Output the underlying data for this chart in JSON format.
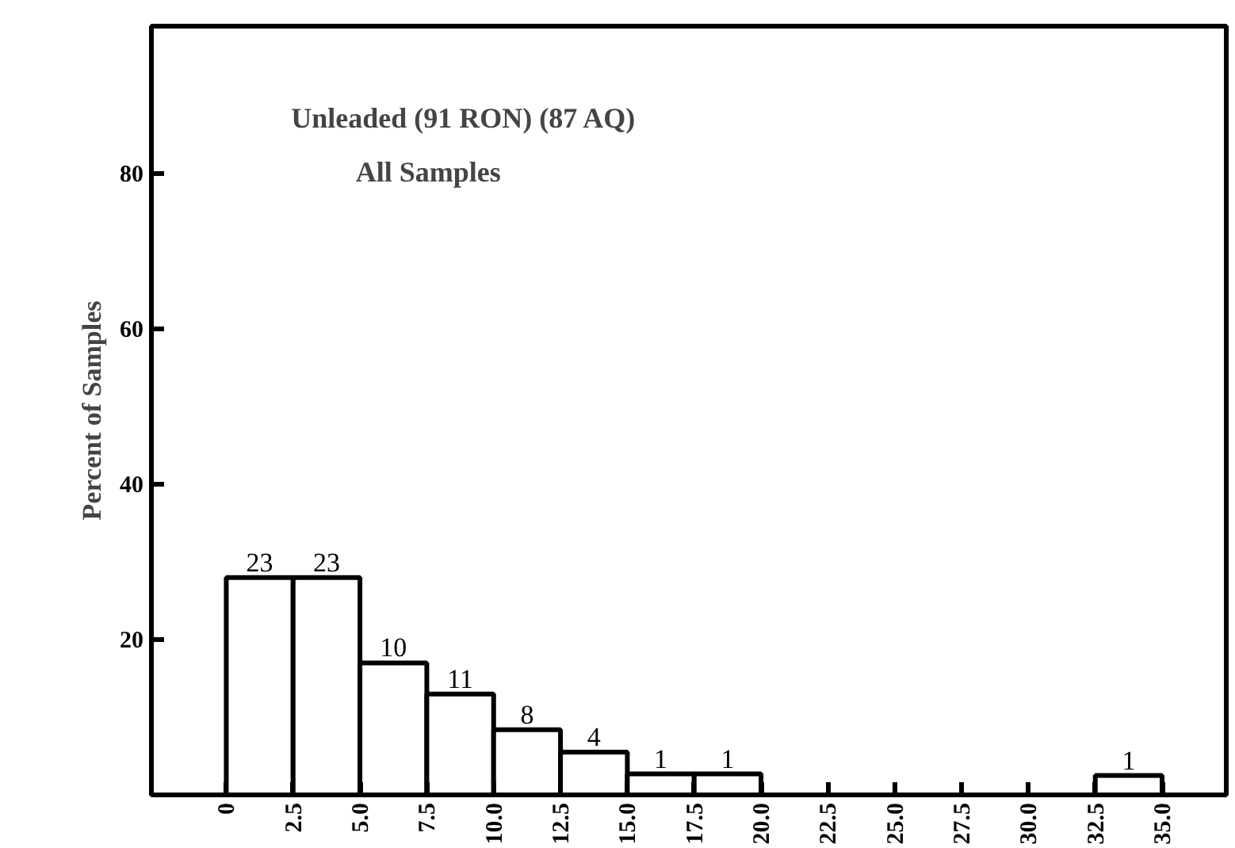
{
  "chart_data": {
    "type": "histogram",
    "title": "Unleaded (91 RON) (87 AQ)",
    "subtitle": "All Samples",
    "ylabel": "Percent of Samples",
    "bins": [
      0,
      2.5,
      5,
      7.5,
      10,
      12.5,
      15,
      17.5,
      20,
      22.5,
      25,
      27.5,
      30,
      32.5,
      35
    ],
    "values": [
      28,
      28,
      17,
      13,
      8.4,
      5.5,
      2.7,
      2.7,
      0,
      0,
      0,
      0,
      0,
      2.5
    ],
    "annotations": [
      {
        "text": "23",
        "x": 1.25,
        "y": 28
      },
      {
        "text": "23",
        "x": 3.75,
        "y": 28
      },
      {
        "text": "10",
        "x": 6.25,
        "y": 17
      },
      {
        "text": "11",
        "x": 8.75,
        "y": 13
      },
      {
        "text": "8",
        "x": 11.25,
        "y": 8.4
      },
      {
        "text": "4",
        "x": 13.75,
        "y": 5.5
      },
      {
        "text": "1",
        "x": 16.25,
        "y": 2.7
      },
      {
        "text": "1",
        "x": 18.75,
        "y": 2.7
      },
      {
        "text": "1",
        "x": 33.75,
        "y": 2.5
      }
    ],
    "color": "#ffffff",
    "xlim": [
      -2.8,
      37.4
    ],
    "ylim": [
      0,
      99
    ],
    "xticks": [
      0,
      {
        "value": 2.5,
        "label": "2.5"
      },
      {
        "value": 5,
        "label": "5.0"
      },
      {
        "value": 7.5,
        "label": "7.5"
      },
      {
        "value": 10,
        "label": "10.0"
      },
      {
        "value": 12.5,
        "label": "12.5"
      },
      {
        "value": 15,
        "label": "15.0"
      },
      {
        "value": 17.5,
        "label": "17.5"
      },
      {
        "value": 20,
        "label": "20.0"
      },
      {
        "value": 22.5,
        "label": "22.5"
      },
      {
        "value": 25,
        "label": "25.0"
      },
      {
        "value": 27.5,
        "label": "27.5"
      },
      {
        "value": 30,
        "label": "30.0"
      },
      {
        "value": 32.5,
        "label": "32.5"
      },
      {
        "value": 35,
        "label": "35.0"
      }
    ],
    "yticks": [
      20,
      40,
      60,
      80
    ],
    "grid": false
  }
}
